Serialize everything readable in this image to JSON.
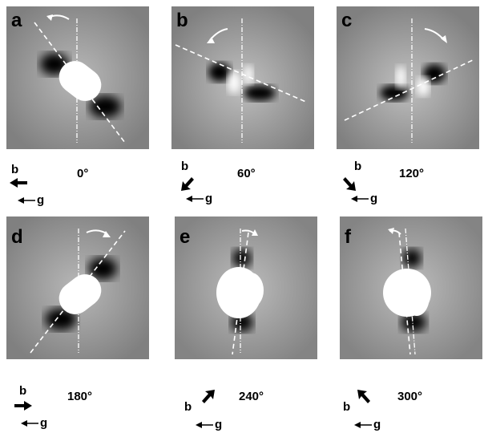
{
  "panels": [
    {
      "letter": "a",
      "angle": "0°",
      "b_dir": "left",
      "g_label": "g",
      "b_label": "b"
    },
    {
      "letter": "b",
      "angle": "60°",
      "b_dir": "down-left",
      "g_label": "g",
      "b_label": "b"
    },
    {
      "letter": "c",
      "angle": "120°",
      "b_dir": "down-right",
      "g_label": "g",
      "b_label": "b"
    },
    {
      "letter": "d",
      "angle": "180°",
      "b_dir": "right",
      "g_label": "g",
      "b_label": "b"
    },
    {
      "letter": "e",
      "angle": "240°",
      "b_dir": "up-right",
      "g_label": "g",
      "b_label": "b"
    },
    {
      "letter": "f",
      "angle": "300°",
      "b_dir": "up-left",
      "g_label": "g",
      "b_label": "b"
    }
  ],
  "colors": {
    "background": "#8c8c8c",
    "dark": "#0a0a0a",
    "bright": "#ffffff",
    "lines": "#ffffff"
  }
}
